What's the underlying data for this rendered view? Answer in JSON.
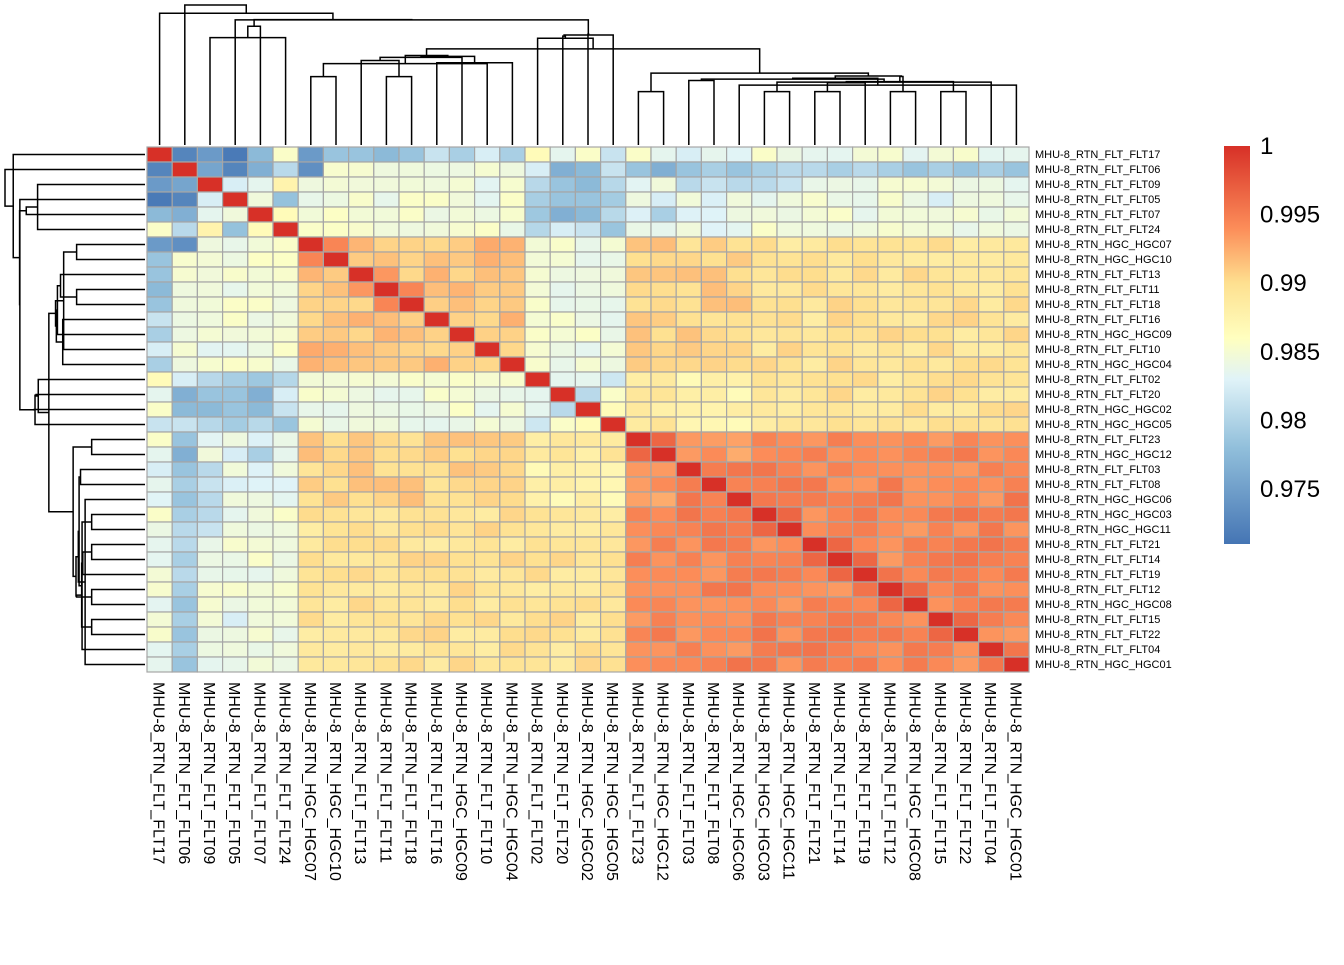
{
  "chart_data": {
    "type": "heatmap",
    "title": "",
    "labels": [
      "MHU-8_RTN_FLT_FLT17",
      "MHU-8_RTN_FLT_FLT06",
      "MHU-8_RTN_FLT_FLT09",
      "MHU-8_RTN_FLT_FLT05",
      "MHU-8_RTN_FLT_FLT07",
      "MHU-8_RTN_FLT_FLT24",
      "MHU-8_RTN_HGC_HGC07",
      "MHU-8_RTN_HGC_HGC10",
      "MHU-8_RTN_FLT_FLT13",
      "MHU-8_RTN_FLT_FLT11",
      "MHU-8_RTN_FLT_FLT18",
      "MHU-8_RTN_FLT_FLT16",
      "MHU-8_RTN_HGC_HGC09",
      "MHU-8_RTN_FLT_FLT10",
      "MHU-8_RTN_HGC_HGC04",
      "MHU-8_RTN_FLT_FLT02",
      "MHU-8_RTN_FLT_FLT20",
      "MHU-8_RTN_HGC_HGC02",
      "MHU-8_RTN_HGC_HGC05",
      "MHU-8_RTN_FLT_FLT23",
      "MHU-8_RTN_HGC_HGC12",
      "MHU-8_RTN_FLT_FLT03",
      "MHU-8_RTN_FLT_FLT08",
      "MHU-8_RTN_HGC_HGC06",
      "MHU-8_RTN_HGC_HGC03",
      "MHU-8_RTN_HGC_HGC11",
      "MHU-8_RTN_FLT_FLT21",
      "MHU-8_RTN_FLT_FLT14",
      "MHU-8_RTN_FLT_FLT19",
      "MHU-8_RTN_FLT_FLT12",
      "MHU-8_RTN_HGC_HGC08",
      "MHU-8_RTN_FLT_FLT15",
      "MHU-8_RTN_FLT_FLT22",
      "MHU-8_RTN_FLT_FLT04",
      "MHU-8_RTN_HGC_HGC01"
    ],
    "color_scale": {
      "min": 0.971,
      "max": 1.0,
      "stops": [
        {
          "value": 0.971,
          "color": "#4575b4"
        },
        {
          "value": 0.978,
          "color": "#91bfdb"
        },
        {
          "value": 0.983,
          "color": "#e0f3f8"
        },
        {
          "value": 0.986,
          "color": "#ffffbf"
        },
        {
          "value": 0.99,
          "color": "#fee090"
        },
        {
          "value": 0.994,
          "color": "#fc8d59"
        },
        {
          "value": 1.0,
          "color": "#d73027"
        }
      ],
      "legend_ticks": [
        "1",
        "0.995",
        "0.99",
        "0.985",
        "0.98",
        "0.975"
      ],
      "legend_tick_values": [
        1.0,
        0.995,
        0.99,
        0.985,
        0.98,
        0.975
      ]
    },
    "groups": [
      {
        "members": [
          0,
          1,
          2,
          3,
          4,
          5
        ],
        "within": 0.978,
        "clip": 0.98
      },
      {
        "members": [
          6,
          7,
          8,
          9,
          10,
          11,
          12,
          13,
          14
        ],
        "within": 0.9915,
        "clip": 0.995
      },
      {
        "members": [
          15,
          16,
          17,
          18
        ],
        "within": 0.983,
        "clip": 0.988
      },
      {
        "members": [
          19,
          20
        ],
        "within": 0.9955,
        "clip": 0.9965
      },
      {
        "members": [
          21,
          22,
          23
        ],
        "within": 0.995,
        "clip": 0.9965
      },
      {
        "members": [
          24,
          25,
          26,
          27,
          28,
          29,
          30,
          31,
          32,
          33,
          34
        ],
        "within": 0.9945,
        "clip": 0.997
      }
    ],
    "group_pair_values": [
      [
        0,
        0,
        0.978
      ],
      [
        0,
        1,
        0.9845
      ],
      [
        0,
        2,
        0.9795
      ],
      [
        0,
        3,
        0.9835
      ],
      [
        0,
        4,
        0.9835
      ],
      [
        0,
        5,
        0.9845
      ],
      [
        1,
        1,
        0.9915
      ],
      [
        1,
        2,
        0.9845
      ],
      [
        1,
        3,
        0.9905
      ],
      [
        1,
        4,
        0.9905
      ],
      [
        1,
        5,
        0.9895
      ],
      [
        2,
        2,
        0.983
      ],
      [
        2,
        3,
        0.9885
      ],
      [
        2,
        4,
        0.9875
      ],
      [
        2,
        5,
        0.9895
      ],
      [
        3,
        3,
        0.9955
      ],
      [
        3,
        4,
        0.9935
      ],
      [
        3,
        5,
        0.9945
      ],
      [
        4,
        4,
        0.995
      ],
      [
        4,
        5,
        0.9945
      ],
      [
        5,
        5,
        0.9945
      ]
    ],
    "cell_overrides": [
      [
        0,
        1,
        0.9725
      ],
      [
        0,
        2,
        0.9745
      ],
      [
        0,
        3,
        0.9715
      ],
      [
        0,
        4,
        0.9775
      ],
      [
        0,
        5,
        0.9855
      ],
      [
        0,
        6,
        0.9745
      ],
      [
        0,
        7,
        0.9785
      ],
      [
        0,
        8,
        0.9785
      ],
      [
        0,
        9,
        0.9775
      ],
      [
        0,
        10,
        0.9785
      ],
      [
        0,
        11,
        0.9815
      ],
      [
        0,
        12,
        0.9795
      ],
      [
        0,
        13,
        0.9825
      ],
      [
        0,
        14,
        0.9795
      ],
      [
        0,
        15,
        0.9865
      ],
      [
        0,
        16,
        0.9835
      ],
      [
        0,
        17,
        0.9855
      ],
      [
        0,
        18,
        0.9815
      ],
      [
        0,
        19,
        0.9855
      ],
      [
        0,
        20,
        0.9835
      ],
      [
        1,
        2,
        0.9755
      ],
      [
        1,
        3,
        0.9725
      ],
      [
        1,
        4,
        0.9765
      ],
      [
        1,
        5,
        0.9805
      ],
      [
        1,
        6,
        0.9735
      ],
      [
        1,
        15,
        0.9825
      ],
      [
        1,
        16,
        0.9765
      ],
      [
        1,
        17,
        0.9775
      ],
      [
        1,
        18,
        0.9815
      ],
      [
        1,
        19,
        0.9785
      ],
      [
        1,
        20,
        0.9765
      ],
      [
        1,
        21,
        0.9785
      ],
      [
        1,
        22,
        0.9795
      ],
      [
        1,
        23,
        0.9785
      ],
      [
        1,
        24,
        0.9795
      ],
      [
        1,
        25,
        0.9805
      ],
      [
        1,
        26,
        0.9805
      ],
      [
        1,
        27,
        0.9795
      ],
      [
        1,
        28,
        0.9805
      ],
      [
        1,
        29,
        0.9795
      ],
      [
        1,
        30,
        0.9785
      ],
      [
        1,
        31,
        0.9795
      ],
      [
        1,
        32,
        0.9785
      ],
      [
        1,
        33,
        0.9795
      ],
      [
        1,
        34,
        0.9785
      ],
      [
        2,
        3,
        0.9825
      ],
      [
        2,
        4,
        0.9835
      ],
      [
        2,
        5,
        0.9875
      ],
      [
        2,
        16,
        0.9785
      ],
      [
        2,
        17,
        0.9775
      ],
      [
        2,
        21,
        0.9805
      ],
      [
        2,
        22,
        0.9815
      ],
      [
        2,
        23,
        0.9805
      ],
      [
        2,
        24,
        0.9805
      ],
      [
        2,
        25,
        0.9815
      ],
      [
        3,
        4,
        0.9845
      ],
      [
        3,
        16,
        0.9785
      ],
      [
        3,
        17,
        0.9785
      ],
      [
        3,
        31,
        0.9825
      ],
      [
        4,
        5,
        0.9865
      ],
      [
        4,
        16,
        0.9765
      ],
      [
        4,
        17,
        0.9775
      ],
      [
        4,
        20,
        0.9795
      ],
      [
        5,
        16,
        0.9825
      ],
      [
        5,
        17,
        0.9815
      ],
      [
        16,
        17,
        0.9805
      ],
      [
        15,
        16,
        0.9835
      ],
      [
        15,
        17,
        0.9835
      ],
      [
        16,
        18,
        0.9855
      ],
      [
        17,
        18,
        0.9865
      ],
      [
        19,
        20,
        0.9965
      ],
      [
        24,
        25,
        0.9965
      ],
      [
        26,
        27,
        0.9965
      ],
      [
        27,
        28,
        0.9965
      ],
      [
        31,
        32,
        0.9965
      ],
      [
        29,
        30,
        0.9965
      ],
      [
        33,
        34,
        0.9955
      ],
      [
        6,
        7,
        0.9945
      ],
      [
        9,
        10,
        0.9945
      ],
      [
        8,
        9,
        0.9935
      ]
    ],
    "diagonal_value": 1.0
  }
}
